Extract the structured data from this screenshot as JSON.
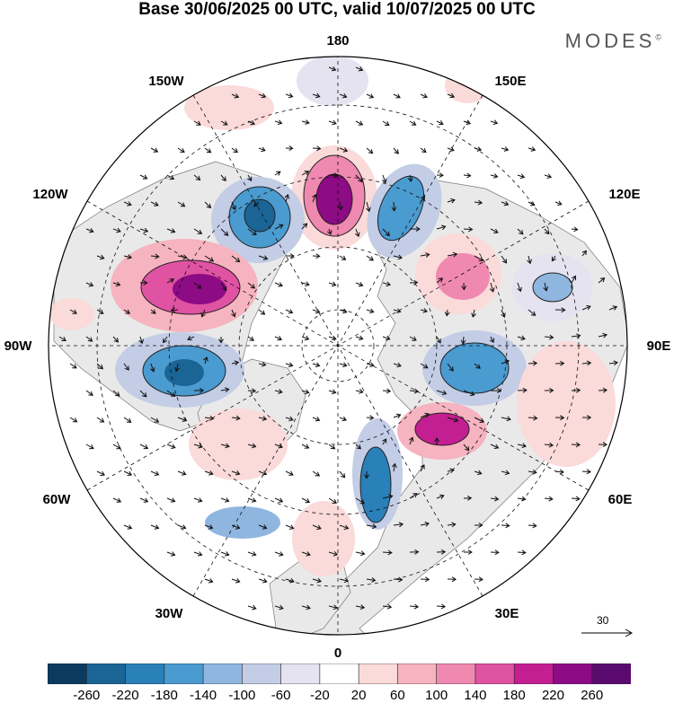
{
  "title": "Base 30/06/2025 00 UTC, valid 10/07/2025 00 UTC",
  "brand": "MODES",
  "brand_mark": "©",
  "longitude_labels": {
    "top": "180",
    "bottom": "0",
    "left": "90W",
    "right": "90E",
    "w150": "150W",
    "e150": "150E",
    "w120": "120W",
    "e120": "120E",
    "w60": "60W",
    "e60": "60E",
    "w30": "30W",
    "e30": "30E"
  },
  "reference_vector": {
    "value": "30"
  },
  "colorbar": {
    "labels": [
      "-260",
      "-220",
      "-180",
      "-140",
      "-100",
      "-60",
      "-20",
      "20",
      "60",
      "100",
      "140",
      "180",
      "220",
      "260"
    ],
    "colors": [
      "#0b3a5e",
      "#1a6496",
      "#2a80b9",
      "#4a9bd0",
      "#8fb6df",
      "#c3cde6",
      "#e6e3f1",
      "#ffffff",
      "#fbdada",
      "#f6b3c0",
      "#f089b0",
      "#e052a2",
      "#c41f92",
      "#8d0b84",
      "#5a0a6f"
    ]
  },
  "anomalies": [
    {
      "name": "anomaly-180-positive",
      "value": 260
    },
    {
      "name": "anomaly-150e-negative",
      "value": -180
    },
    {
      "name": "anomaly-150w-negative",
      "value": -220
    },
    {
      "name": "anomaly-120w-positive",
      "value": 240
    },
    {
      "name": "anomaly-90w-negative",
      "value": -200
    },
    {
      "name": "anomaly-120e-positive",
      "value": 140
    },
    {
      "name": "anomaly-100e-negative",
      "value": -100
    },
    {
      "name": "anomaly-90e-negative",
      "value": -180
    },
    {
      "name": "anomaly-45e-positive",
      "value": 220
    },
    {
      "name": "anomaly-10e-negative",
      "value": -200
    },
    {
      "name": "anomaly-40w-negative",
      "value": -100
    }
  ]
}
